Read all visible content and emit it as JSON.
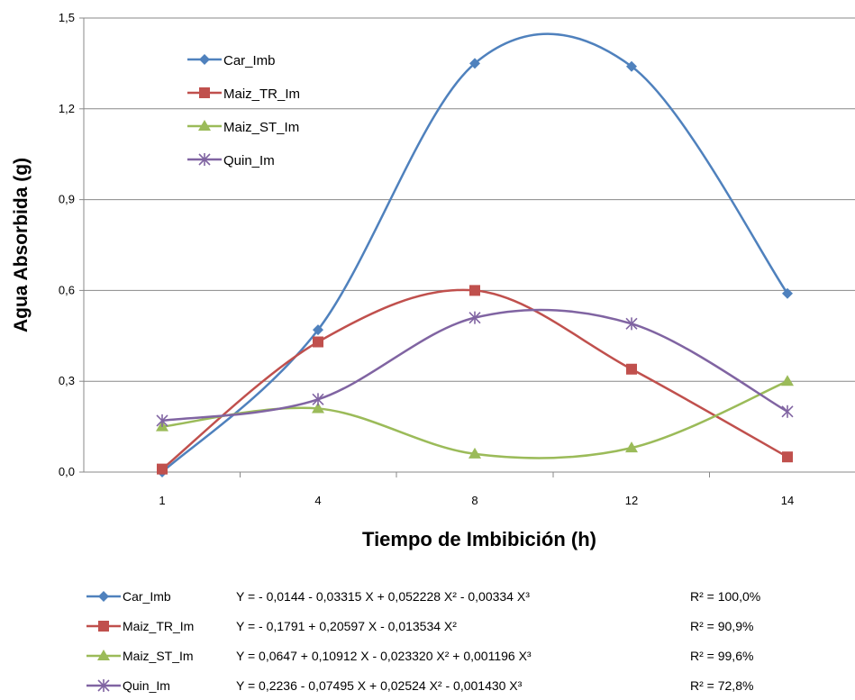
{
  "chart_data": {
    "type": "line",
    "title": "",
    "xlabel": "Tiempo de Imbibición (h)",
    "ylabel": "Agua Absorbida (g)",
    "categories": [
      "1",
      "4",
      "8",
      "12",
      "14"
    ],
    "ylim": [
      0,
      1.5
    ],
    "yticks": [
      "0,0",
      "0,3",
      "0,6",
      "0,9",
      "1,2",
      "1,5"
    ],
    "grid": "horizontal",
    "legend_position": "top-left",
    "series": [
      {
        "name": "Car_Imb",
        "marker": "diamond",
        "color": "#4F81BD",
        "values": [
          0.0,
          0.47,
          1.35,
          1.34,
          0.59
        ]
      },
      {
        "name": "Maiz_TR_Im",
        "marker": "square",
        "color": "#C0504D",
        "values": [
          0.01,
          0.43,
          0.6,
          0.34,
          0.05
        ]
      },
      {
        "name": "Maiz_ST_Im",
        "marker": "triangle",
        "color": "#9BBB59",
        "values": [
          0.15,
          0.21,
          0.06,
          0.08,
          0.3
        ]
      },
      {
        "name": "Quin_Im",
        "marker": "star",
        "color": "#8064A2",
        "values": [
          0.17,
          0.24,
          0.51,
          0.49,
          0.2
        ]
      }
    ],
    "equations": [
      {
        "series": "Car_Imb",
        "equation": "Y = - 0,0144 - 0,03315 X + 0,052228 X² - 0,00334 X³",
        "r2": "R² = 100,0%"
      },
      {
        "series": "Maiz_TR_Im",
        "equation": "Y = - 0,1791 + 0,20597 X - 0,013534 X²",
        "r2": "R² =   90,9%"
      },
      {
        "series": "Maiz_ST_Im",
        "equation": "Y =  0,0647 + 0,10912 X - 0,023320 X² + 0,001196 X³",
        "r2": "R² =   99,6%"
      },
      {
        "series": "Quin_Im",
        "equation": "Y =  0,2236 - 0,07495  X + 0,02524  X² - 0,001430  X³",
        "r2": "R² =   72,8%"
      }
    ]
  }
}
